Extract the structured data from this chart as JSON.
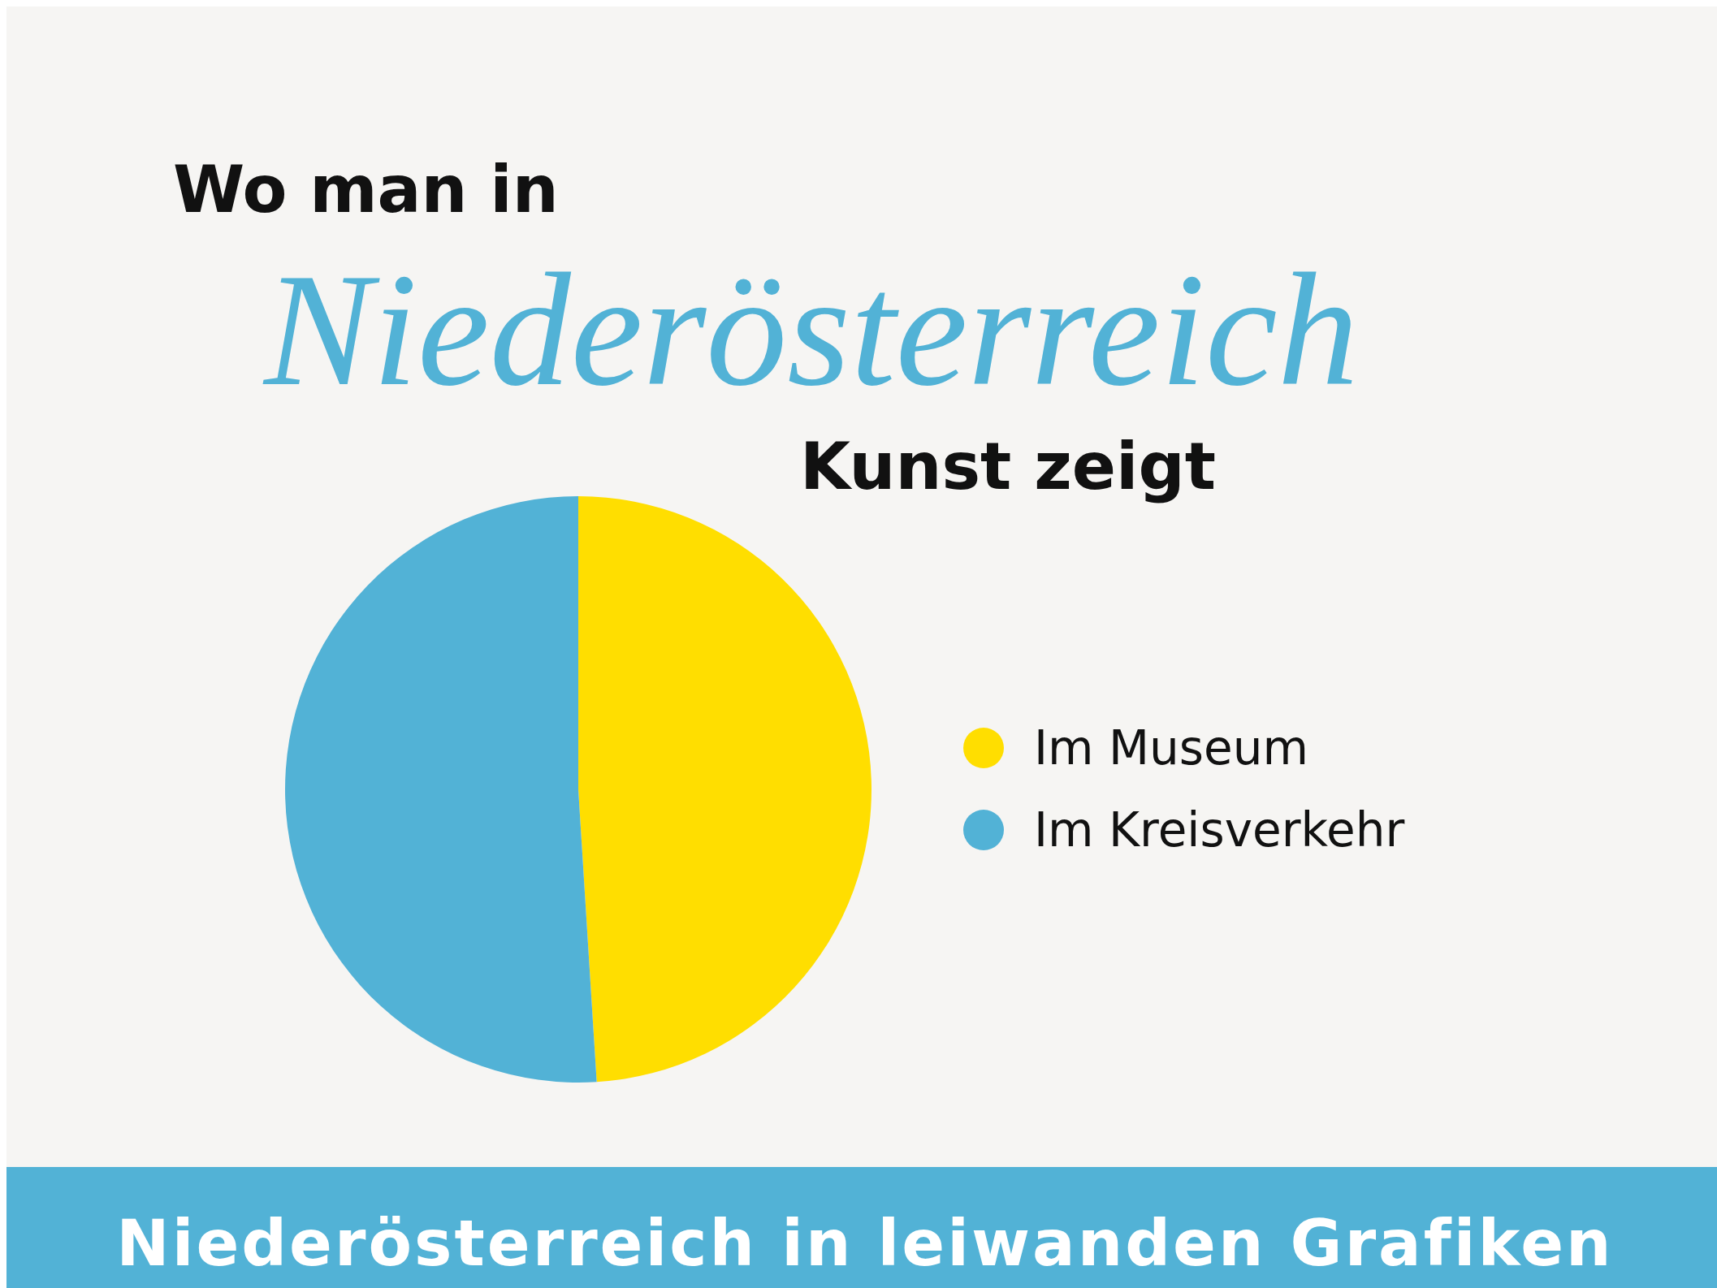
{
  "chart_data": {
    "type": "pie",
    "title": "Wo man in Niederösterreich Kunst zeigt",
    "categories": [
      "Im Museum",
      "Im Kreisverkehr"
    ],
    "values": [
      49,
      51
    ],
    "colors": [
      "#ffde00",
      "#52b2d6"
    ],
    "legend": "right",
    "annotations": [
      "Niederösterreich in leiwanden Grafiken"
    ]
  }
}
